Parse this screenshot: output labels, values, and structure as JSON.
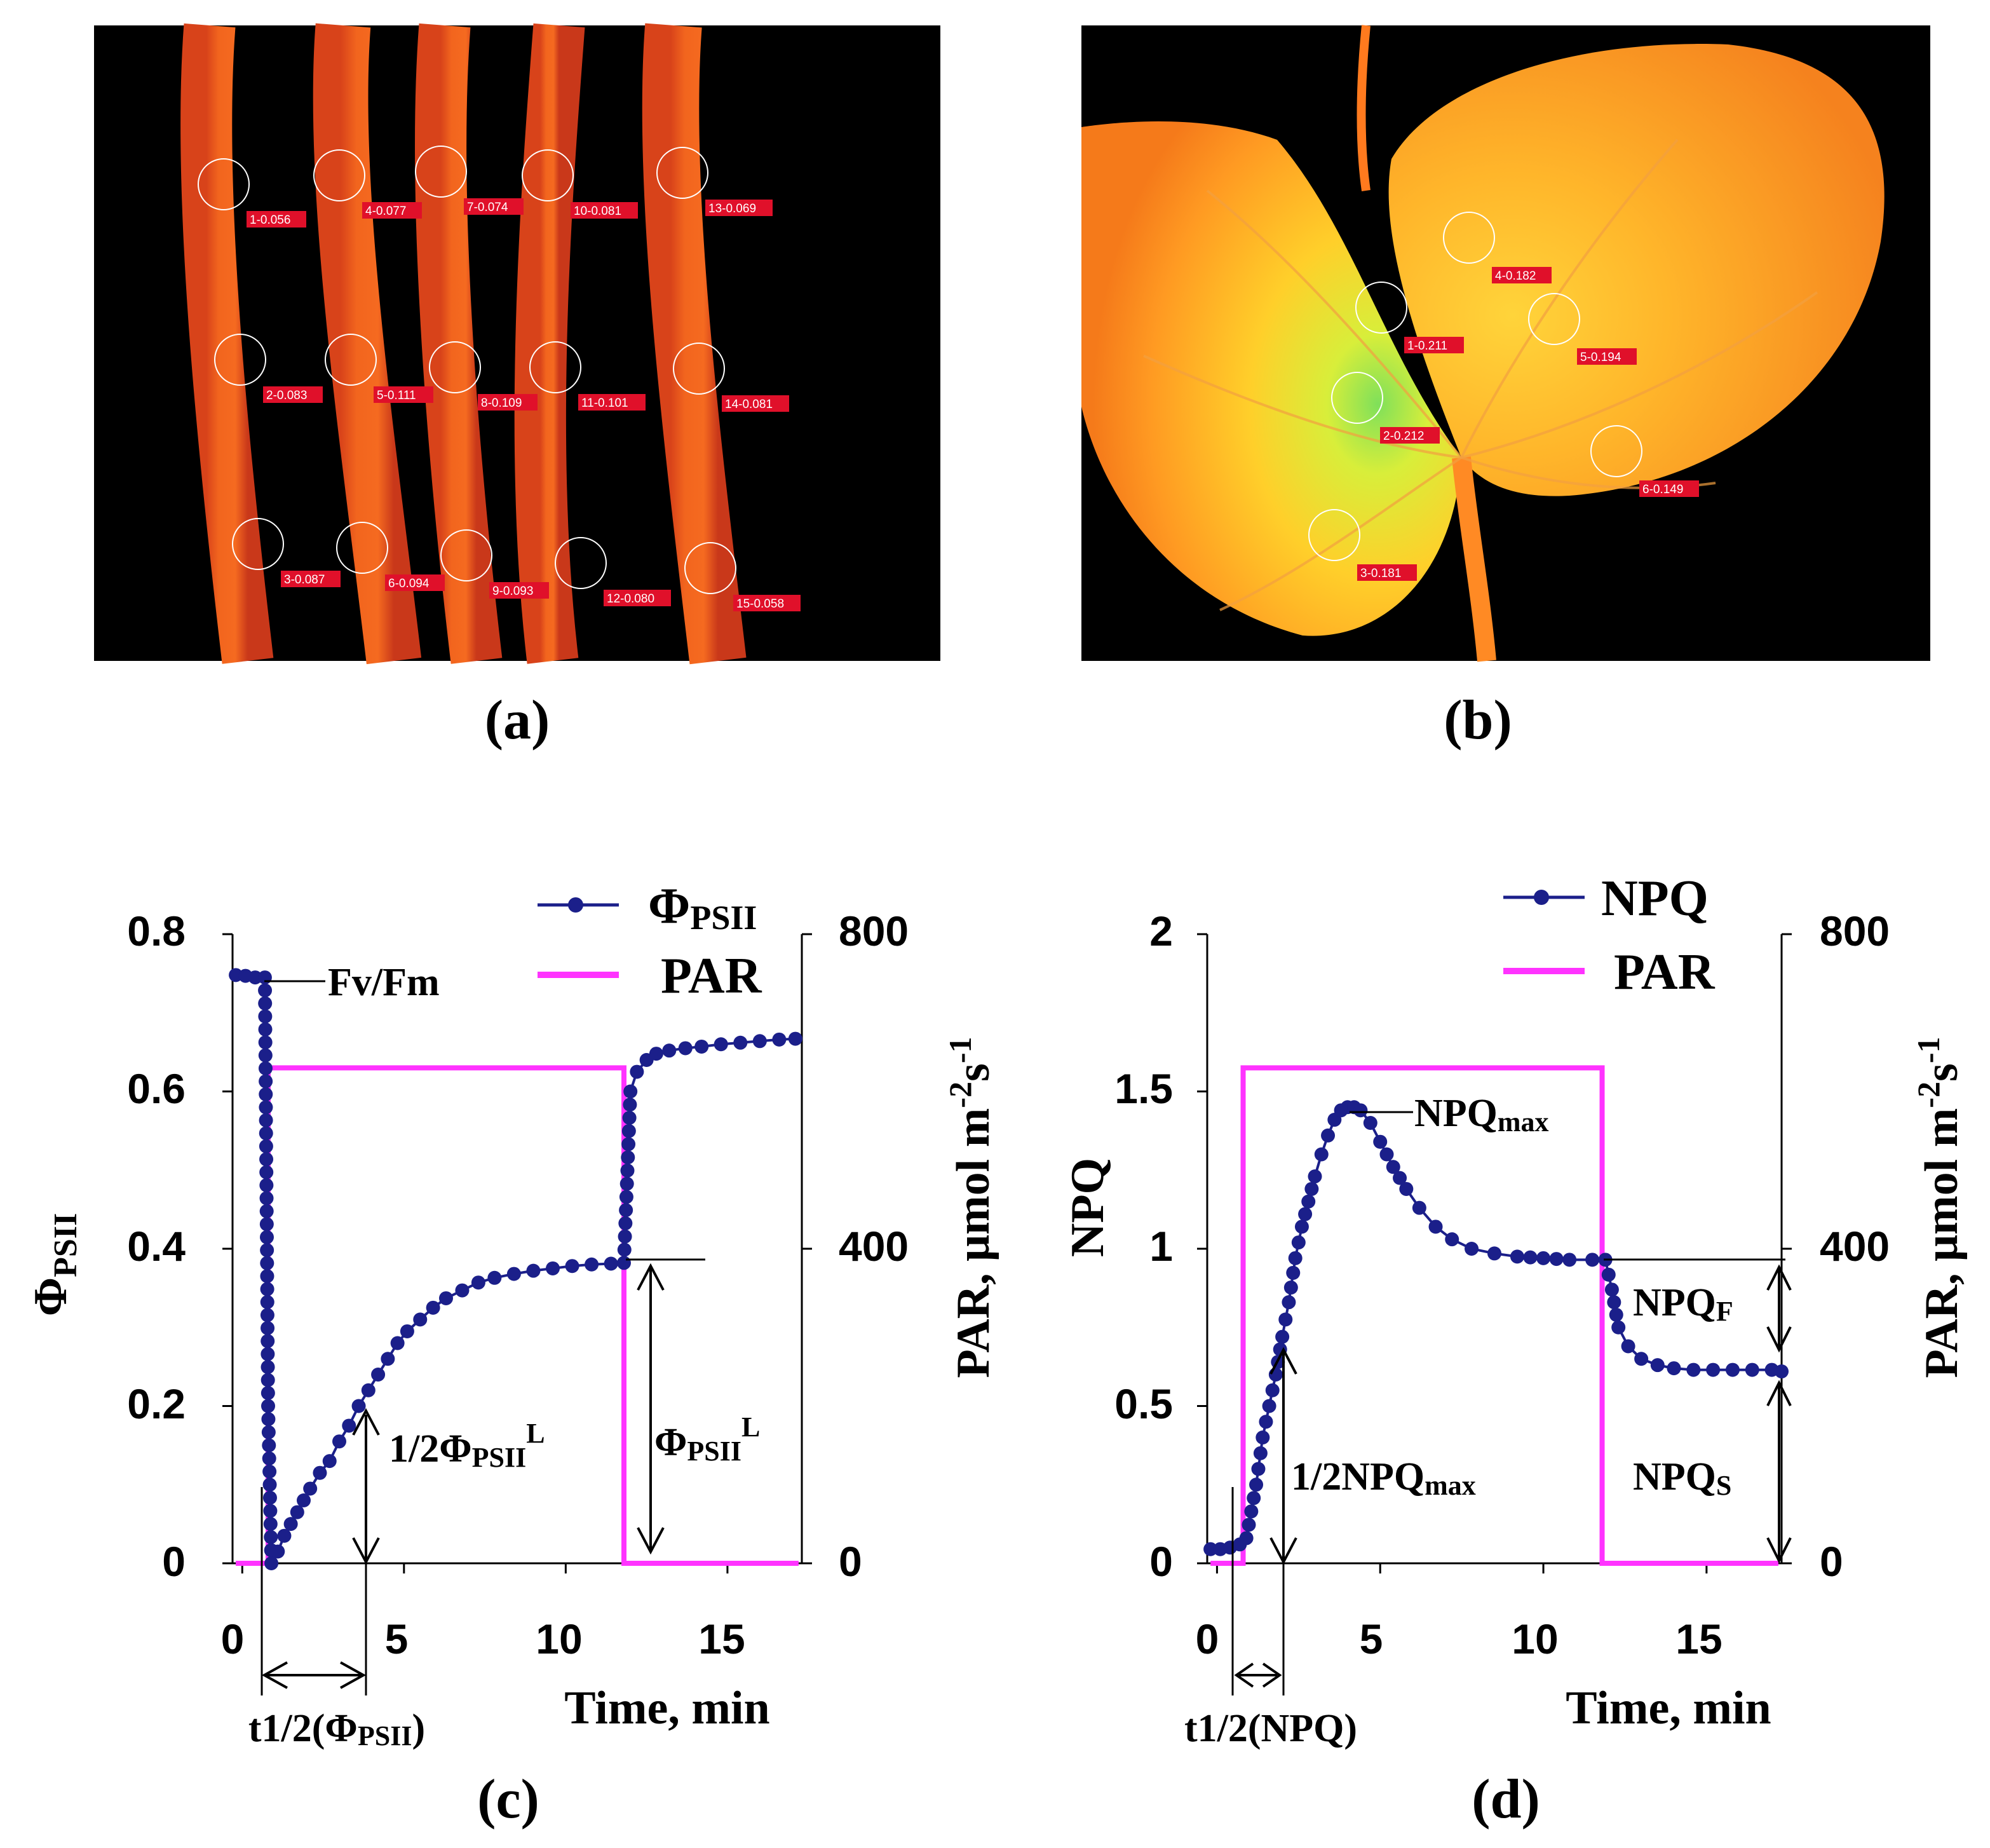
{
  "panels": {
    "a": {
      "label": "(a)",
      "rois": [
        {
          "id": "1-0.056"
        },
        {
          "id": "2-0.083"
        },
        {
          "id": "3-0.087"
        },
        {
          "id": "4-0.077"
        },
        {
          "id": "5-0.111"
        },
        {
          "id": "6-0.094"
        },
        {
          "id": "7-0.074"
        },
        {
          "id": "8-0.109"
        },
        {
          "id": "9-0.093"
        },
        {
          "id": "10-0.081"
        },
        {
          "id": "11-0.101"
        },
        {
          "id": "12-0.080"
        },
        {
          "id": "13-0.069"
        },
        {
          "id": "14-0.081"
        },
        {
          "id": "15-0.058"
        }
      ]
    },
    "b": {
      "label": "(b)",
      "rois": [
        {
          "id": "1-0.211"
        },
        {
          "id": "2-0.212"
        },
        {
          "id": "3-0.181"
        },
        {
          "id": "4-0.182"
        },
        {
          "id": "5-0.194"
        },
        {
          "id": "6-0.149"
        }
      ]
    },
    "c": {
      "label": "(c)",
      "left_ticks": [
        "0",
        "0.2",
        "0.4",
        "0.6",
        "0.8"
      ],
      "right_ticks": [
        "0",
        "400",
        "800"
      ],
      "x_ticks": [
        "0",
        "5",
        "10",
        "15"
      ],
      "xlabel": "Time, min",
      "ylabel_main": "Φ",
      "ylabel_sub": "PSII",
      "ylabel_right": "PAR, μmol m",
      "ylabel_right_sup1": "-2",
      "ylabel_right_mid": "s",
      "ylabel_right_sup2": "-1",
      "legend_series_main": "Φ",
      "legend_series_sub": "PSII",
      "legend_par": "PAR",
      "anno_fvfm": "Fv/Fm",
      "anno_half_pre": "1/2Φ",
      "anno_half_sub": "PSII",
      "anno_half_sup": "L",
      "anno_l_pre": "Φ",
      "anno_l_sub": "PSII",
      "anno_l_sup": "L",
      "anno_t_pre": "t1/2(Φ",
      "anno_t_sub": "PSII",
      "anno_t_post": ")"
    },
    "d": {
      "label": "(d)",
      "left_ticks": [
        "0",
        "0.5",
        "1",
        "1.5",
        "2"
      ],
      "right_ticks": [
        "0",
        "400",
        "800"
      ],
      "x_ticks": [
        "0",
        "5",
        "10",
        "15"
      ],
      "xlabel": "Time, min",
      "ylabel_main": "NPQ",
      "ylabel_right": "PAR, μmol m",
      "ylabel_right_sup1": "-2",
      "ylabel_right_mid": "s",
      "ylabel_right_sup2": "-1",
      "legend_series": "NPQ",
      "legend_par": "PAR",
      "anno_max_pre": "NPQ",
      "anno_max_sub": "max",
      "anno_half_pre": "1/2NPQ",
      "anno_half_sub": "max",
      "anno_f_pre": "NPQ",
      "anno_f_sub": "F",
      "anno_s_pre": "NPQ",
      "anno_s_sub": "S",
      "anno_t": "t1/2(NPQ)"
    }
  },
  "chart_data": [
    {
      "type": "line",
      "panel": "c",
      "xlabel": "Time, min",
      "ylabel": "ΦPSII",
      "y2label": "PAR, μmol m-2s-1",
      "xlim": [
        -0.3,
        17.3
      ],
      "ylim": [
        0,
        0.8
      ],
      "y2lim": [
        0,
        800
      ],
      "series": [
        {
          "name": "ΦPSII",
          "axis": "left",
          "color": "#1b1f8a",
          "x": [
            -0.2,
            0.1,
            0.4,
            0.7,
            0.8,
            0.9,
            1.1,
            1.3,
            1.5,
            1.7,
            1.9,
            2.1,
            2.4,
            2.7,
            3.0,
            3.3,
            3.6,
            3.9,
            4.2,
            4.5,
            4.8,
            5.1,
            5.5,
            5.9,
            6.3,
            6.8,
            7.3,
            7.8,
            8.4,
            9.0,
            9.6,
            10.2,
            10.8,
            11.4,
            11.8,
            12.0,
            12.2,
            12.5,
            12.8,
            13.2,
            13.7,
            14.2,
            14.8,
            15.4,
            16.0,
            16.6,
            17.1
          ],
          "y": [
            0.748,
            0.747,
            0.745,
            0.745,
            0.2,
            0.0,
            0.015,
            0.035,
            0.05,
            0.065,
            0.08,
            0.095,
            0.115,
            0.13,
            0.155,
            0.175,
            0.2,
            0.22,
            0.24,
            0.26,
            0.28,
            0.295,
            0.31,
            0.325,
            0.337,
            0.347,
            0.357,
            0.363,
            0.368,
            0.372,
            0.375,
            0.378,
            0.38,
            0.381,
            0.382,
            0.6,
            0.625,
            0.64,
            0.648,
            0.652,
            0.655,
            0.657,
            0.66,
            0.662,
            0.664,
            0.666,
            0.667
          ]
        },
        {
          "name": "PAR",
          "axis": "right",
          "color": "#ff33ff",
          "x": [
            -0.2,
            0.8,
            0.8,
            11.8,
            11.8,
            17.2
          ],
          "y": [
            0,
            0,
            630,
            630,
            0,
            0
          ]
        }
      ],
      "annotations": [
        "Fv/Fm",
        "1/2ΦPSIIL",
        "ΦPSIIL",
        "t1/2(ΦPSII)"
      ]
    },
    {
      "type": "line",
      "panel": "d",
      "xlabel": "Time, min",
      "ylabel": "NPQ",
      "y2label": "PAR, μmol m-2s-1",
      "xlim": [
        -0.3,
        17.3
      ],
      "ylim": [
        0,
        2
      ],
      "y2lim": [
        0,
        800
      ],
      "series": [
        {
          "name": "NPQ",
          "axis": "left",
          "color": "#1b1f8a",
          "x": [
            -0.2,
            0.1,
            0.4,
            0.7,
            0.9,
            1.2,
            1.4,
            1.6,
            1.8,
            2.0,
            2.2,
            2.4,
            2.6,
            2.8,
            3.0,
            3.2,
            3.4,
            3.6,
            3.8,
            4.0,
            4.2,
            4.4,
            4.7,
            5.0,
            5.4,
            5.8,
            6.2,
            6.7,
            7.2,
            7.8,
            8.5,
            9.2,
            10.0,
            10.8,
            11.5,
            11.9,
            12.1,
            12.3,
            12.6,
            13.0,
            13.5,
            14.0,
            14.6,
            15.2,
            15.8,
            16.4,
            17.0,
            17.3
          ],
          "y": [
            0.045,
            0.045,
            0.05,
            0.06,
            0.08,
            0.25,
            0.4,
            0.5,
            0.6,
            0.72,
            0.83,
            0.97,
            1.07,
            1.15,
            1.23,
            1.3,
            1.36,
            1.41,
            1.44,
            1.45,
            1.45,
            1.44,
            1.4,
            1.34,
            1.26,
            1.19,
            1.13,
            1.07,
            1.03,
            1.0,
            0.985,
            0.975,
            0.97,
            0.965,
            0.965,
            0.965,
            0.87,
            0.75,
            0.69,
            0.65,
            0.63,
            0.62,
            0.615,
            0.615,
            0.615,
            0.615,
            0.615,
            0.61
          ]
        },
        {
          "name": "PAR",
          "axis": "right",
          "color": "#ff33ff",
          "x": [
            -0.2,
            0.8,
            0.8,
            11.8,
            11.8,
            17.2
          ],
          "y": [
            0,
            0,
            630,
            630,
            0,
            0
          ]
        }
      ],
      "annotations": [
        "NPQmax",
        "1/2NPQmax",
        "NPQF",
        "NPQS",
        "t1/2(NPQ)"
      ]
    }
  ]
}
